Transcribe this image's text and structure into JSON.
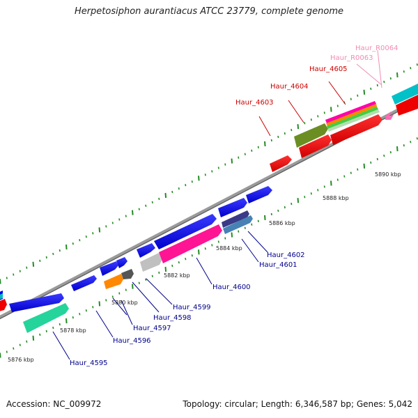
{
  "title": "Herpetosiphon aurantiacus ATCC 23779, complete genome",
  "footer": {
    "accession": "Accession: NC_009972",
    "topology": "Topology: circular; Length: 6,346,587 bp; Genes: 5,042"
  },
  "scale_labels": [
    "5876 kbp",
    "5878 kbp",
    "5880 kbp",
    "5882 kbp",
    "5884 kbp",
    "5886 kbp",
    "5888 kbp",
    "5890 kbp"
  ],
  "gene_labels": [
    {
      "text": "Haur_4595",
      "color": "#00008b"
    },
    {
      "text": "Haur_4596",
      "color": "#00008b"
    },
    {
      "text": "Haur_4597",
      "color": "#00008b"
    },
    {
      "text": "Haur_4598",
      "color": "#00008b"
    },
    {
      "text": "Haur_4599",
      "color": "#00008b"
    },
    {
      "text": "Haur_4600",
      "color": "#00008b"
    },
    {
      "text": "Haur_4601",
      "color": "#00008b"
    },
    {
      "text": "Haur_4602",
      "color": "#00008b"
    },
    {
      "text": "Haur_4603",
      "color": "#cc0000"
    },
    {
      "text": "Haur_4604",
      "color": "#cc0000"
    },
    {
      "text": "Haur_4605",
      "color": "#cc0000"
    },
    {
      "text": "Haur_R0063",
      "color": "#f08cb4"
    },
    {
      "text": "Haur_R0064",
      "color": "#f08cb4"
    }
  ],
  "colors": {
    "cds": "#0000ee",
    "cds_reverse": "#ee0000",
    "tick": "#228b22",
    "backbone": "#888888"
  }
}
